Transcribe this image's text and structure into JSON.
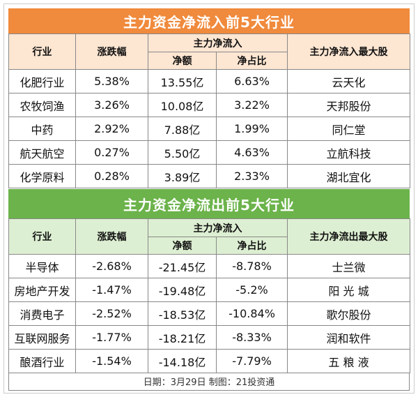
{
  "colors": {
    "inflow_title_bg": "#F08A3C",
    "inflow_header_bg": "#FDE6D2",
    "outflow_title_bg": "#6BB34A",
    "outflow_header_bg": "#DDEFD2"
  },
  "inflow": {
    "title": "主力资金净流入前5大行业",
    "headers": {
      "industry": "行业",
      "change": "涨跌幅",
      "group": "主力净流入",
      "net_amount": "净额",
      "net_ratio": "净占比",
      "top_stock": "主力净流入最大股"
    },
    "rows": [
      {
        "industry": "化肥行业",
        "change": "5.38%",
        "net_amount": "13.55亿",
        "net_ratio": "6.63%",
        "top_stock": "云天化"
      },
      {
        "industry": "农牧饲渔",
        "change": "3.26%",
        "net_amount": "10.08亿",
        "net_ratio": "3.22%",
        "top_stock": "天邦股份"
      },
      {
        "industry": "中药",
        "change": "2.92%",
        "net_amount": "7.88亿",
        "net_ratio": "1.99%",
        "top_stock": "同仁堂"
      },
      {
        "industry": "航天航空",
        "change": "0.27%",
        "net_amount": "5.50亿",
        "net_ratio": "4.63%",
        "top_stock": "立航科技"
      },
      {
        "industry": "化学原料",
        "change": "0.28%",
        "net_amount": "3.89亿",
        "net_ratio": "2.33%",
        "top_stock": "湖北宜化"
      }
    ]
  },
  "outflow": {
    "title": "主力资金净流出前5大行业",
    "headers": {
      "industry": "行业",
      "change": "涨跌幅",
      "group": "主力净流入",
      "net_amount": "净额",
      "net_ratio": "净占比",
      "top_stock": "主力净流出最大股"
    },
    "rows": [
      {
        "industry": "半导体",
        "change": "-2.68%",
        "net_amount": "-21.45亿",
        "net_ratio": "-8.78%",
        "top_stock": "士兰微"
      },
      {
        "industry": "房地产开发",
        "change": "-1.47%",
        "net_amount": "-19.48亿",
        "net_ratio": "-5.2%",
        "top_stock": "阳 光 城"
      },
      {
        "industry": "消费电子",
        "change": "-2.52%",
        "net_amount": "-18.53亿",
        "net_ratio": "-10.84%",
        "top_stock": "歌尔股份"
      },
      {
        "industry": "互联网服务",
        "change": "-1.77%",
        "net_amount": "-18.21亿",
        "net_ratio": "-8.33%",
        "top_stock": "润和软件"
      },
      {
        "industry": "酿酒行业",
        "change": "-1.54%",
        "net_amount": "-14.18亿",
        "net_ratio": "-7.79%",
        "top_stock": "五 粮 液"
      }
    ]
  },
  "footer": "日期：3月29日 制图：21投资通"
}
